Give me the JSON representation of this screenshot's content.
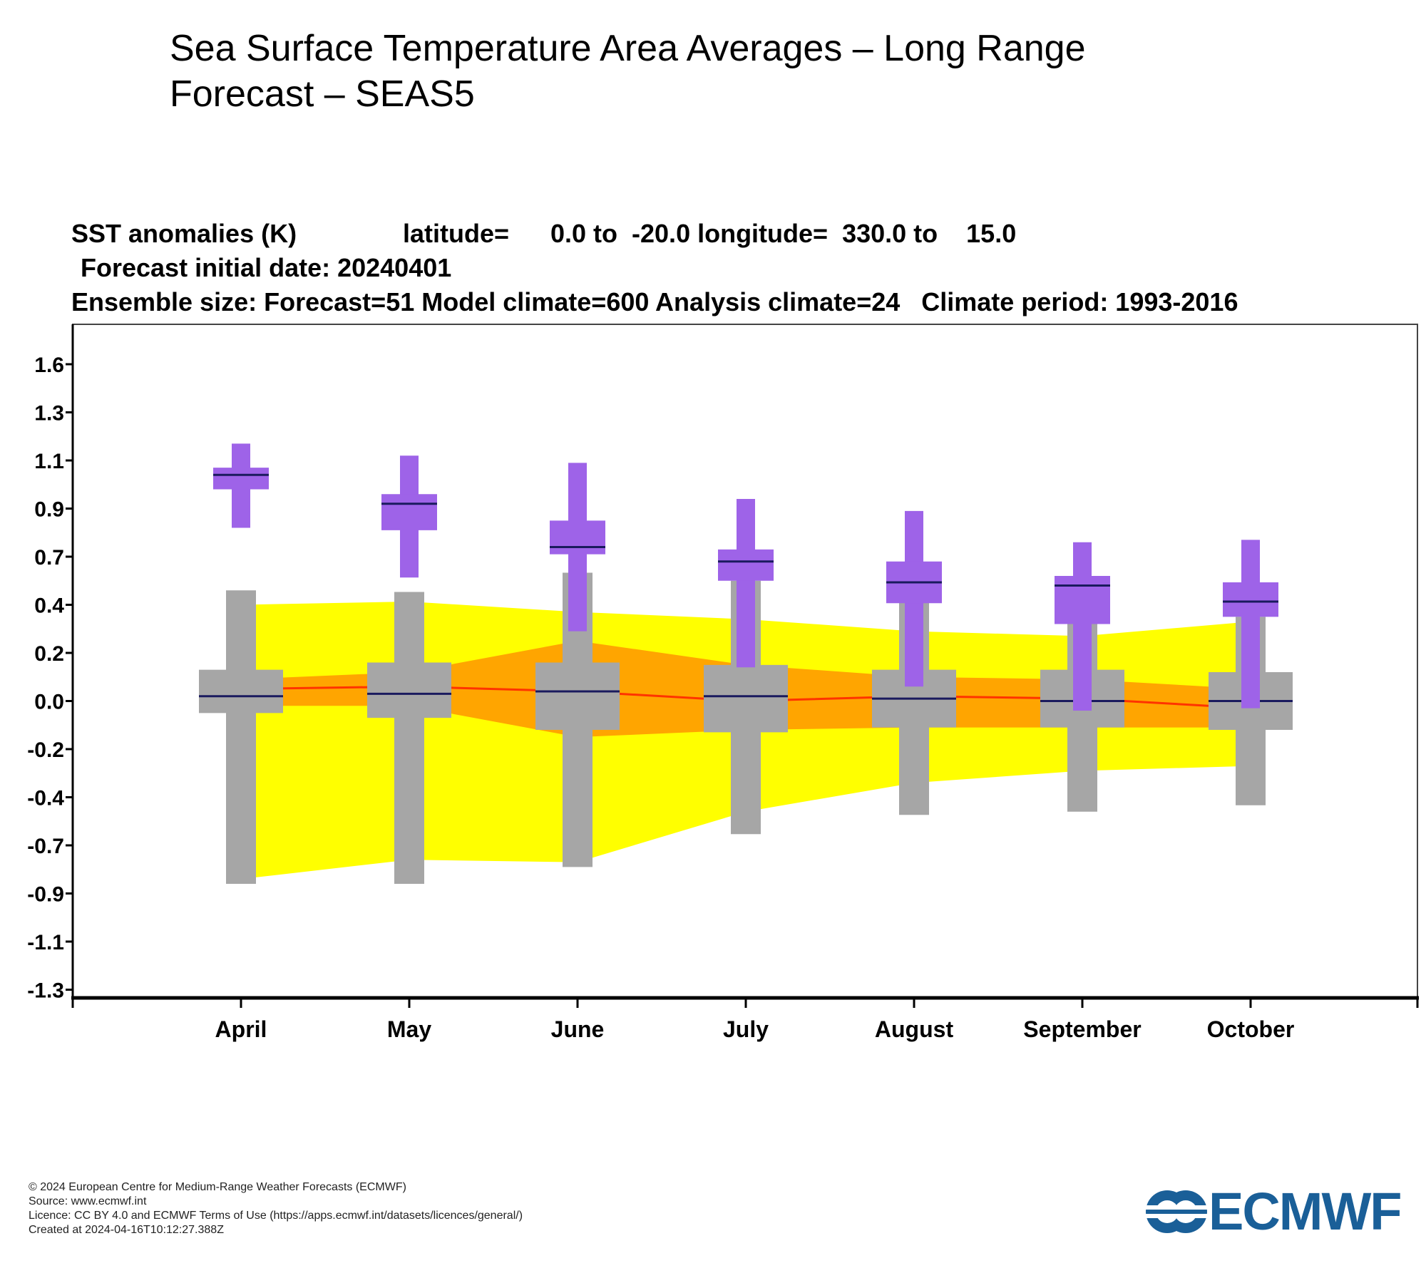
{
  "page": {
    "title": "Sea Surface Temperature Area Averages – Long Range Forecast – SEAS5"
  },
  "chart_header": {
    "line1_a": "SST anomalies (K)",
    "line1_b": "latitude=",
    "line1_c": "0.0 to  -20.0 longitude=  330.0 to    15.0",
    "line2": "Forecast initial date: 20240401",
    "line3": "Ensemble size: Forecast=51 Model climate=600 Analysis climate=24   Climate period: 1993-2016"
  },
  "footer": {
    "line1": "© 2024 European Centre for Medium-Range Weather Forecasts (ECMWF)",
    "line2": "Source: www.ecmwf.int",
    "line3": "Licence: CC BY 4.0 and ECMWF Terms of Use (https://apps.ecmwf.int/datasets/licences/general/)",
    "line4": "Created at 2024-04-16T10:12:27.388Z"
  },
  "logo": {
    "text": "ECMWF",
    "color": "#1a5f98"
  },
  "colors": {
    "forecast": "#9e63e8",
    "model_climate": "#a6a6a6",
    "analysis_outer": "#ffff00",
    "analysis_inner": "#ffa500",
    "analysis_median_line": "#ff3300",
    "median_bar": "#1a1a5e"
  },
  "chart_data": {
    "type": "box",
    "ylabel": "",
    "xlabel": "",
    "y_ticks": [
      1.6,
      1.3,
      1.1,
      0.9,
      0.7,
      0.4,
      0.2,
      0.0,
      -0.2,
      -0.4,
      -0.7,
      -0.9,
      -1.1,
      -1.3
    ],
    "y_tick_labels": [
      "1.6",
      "1.3",
      "1.1",
      "0.9",
      "0.7",
      "0.4",
      "0.2",
      "0.0",
      "-0.2",
      "-0.4",
      "-0.7",
      "-0.9",
      "-1.1",
      "-1.3"
    ],
    "categories": [
      "April",
      "May",
      "June",
      "July",
      "August",
      "September",
      "October"
    ],
    "forecast": [
      {
        "min": 0.82,
        "q1": 0.98,
        "median": 1.04,
        "q3": 1.07,
        "max": 1.17
      },
      {
        "min": 0.57,
        "q1": 0.81,
        "median": 0.92,
        "q3": 0.96,
        "max": 1.12
      },
      {
        "min": 0.29,
        "q1": 0.71,
        "median": 0.74,
        "q3": 0.85,
        "max": 1.09
      },
      {
        "min": 0.14,
        "q1": 0.55,
        "median": 0.67,
        "q3": 0.73,
        "max": 0.94
      },
      {
        "min": 0.06,
        "q1": 0.41,
        "median": 0.54,
        "q3": 0.67,
        "max": 0.89
      },
      {
        "min": -0.04,
        "q1": 0.32,
        "median": 0.52,
        "q3": 0.58,
        "max": 0.76
      },
      {
        "min": -0.03,
        "q1": 0.35,
        "median": 0.42,
        "q3": 0.54,
        "max": 0.77
      }
    ],
    "model_climate": [
      {
        "min": -0.86,
        "q1": -0.05,
        "median": 0.02,
        "q3": 0.13,
        "max": 0.49
      },
      {
        "min": -0.86,
        "q1": -0.07,
        "median": 0.03,
        "q3": 0.16,
        "max": 0.48
      },
      {
        "min": -0.79,
        "q1": -0.12,
        "median": 0.04,
        "q3": 0.16,
        "max": 0.6
      },
      {
        "min": -0.63,
        "q1": -0.13,
        "median": 0.02,
        "q3": 0.15,
        "max": 0.55
      },
      {
        "min": -0.51,
        "q1": -0.11,
        "median": 0.01,
        "q3": 0.13,
        "max": 0.44
      },
      {
        "min": -0.49,
        "q1": -0.11,
        "median": 0.0,
        "q3": 0.13,
        "max": 0.33
      },
      {
        "min": -0.45,
        "q1": -0.12,
        "median": 0.0,
        "q3": 0.12,
        "max": 0.35
      }
    ],
    "analysis_climate": {
      "outer_low": [
        -0.84,
        -0.76,
        -0.77,
        -0.49,
        -0.34,
        -0.29,
        -0.27
      ],
      "outer_high": [
        0.4,
        0.42,
        0.37,
        0.34,
        0.29,
        0.27,
        0.33
      ],
      "inner_low": [
        -0.02,
        -0.02,
        -0.15,
        -0.12,
        -0.11,
        -0.11,
        -0.11
      ],
      "inner_high": [
        0.09,
        0.12,
        0.25,
        0.15,
        0.1,
        0.09,
        0.05
      ],
      "median": [
        0.05,
        0.06,
        0.04,
        0.0,
        0.02,
        0.01,
        -0.03
      ]
    },
    "grid": false,
    "legend": "none"
  }
}
